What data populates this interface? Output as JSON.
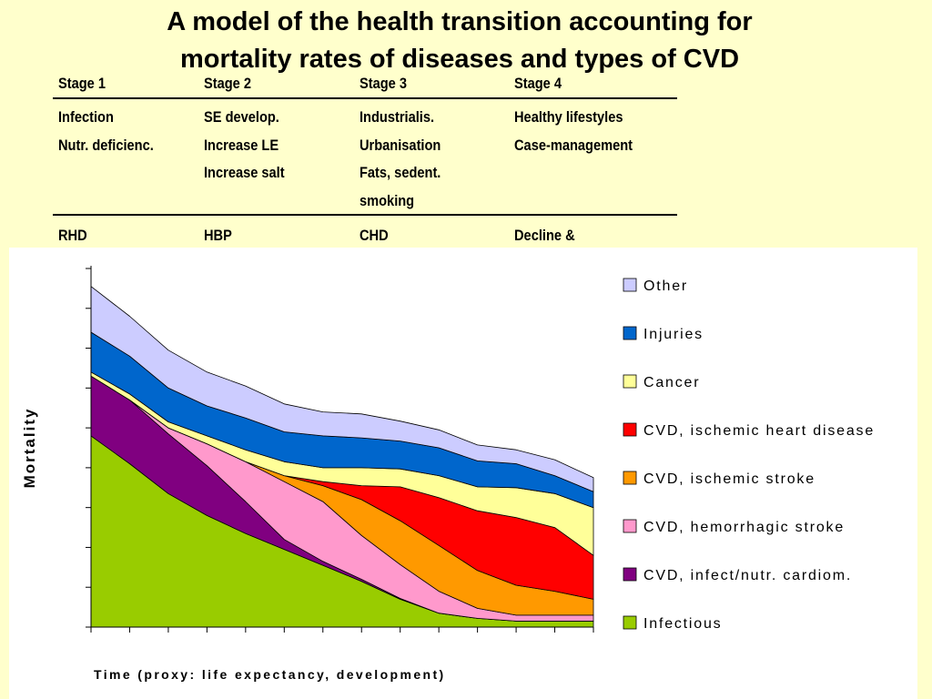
{
  "title_line1": "A model of the health transition accounting for",
  "title_line2": "mortality rates of diseases and types of CVD",
  "table": {
    "headers": [
      "Stage 1",
      "Stage 2",
      "Stage 3",
      "Stage 4"
    ],
    "rows": [
      [
        "Infection\nNutr. deficienc.",
        "SE develop.\nIncrease LE\nIncrease salt",
        "Industrialis.\nUrbanisation\nFats, sedent.\nsmoking",
        "Healthy lifestyles\nCase-management"
      ],
      [
        "RHD",
        "HBP",
        "CHD",
        "Decline &"
      ]
    ]
  },
  "chart_data": {
    "type": "area",
    "stacked": true,
    "title": "",
    "xlabel": "Time   (proxy: life expectancy, development)",
    "ylabel": "Mortality",
    "x": [
      0,
      1,
      2,
      3,
      4,
      5,
      6,
      7,
      8,
      9,
      10,
      11,
      12,
      13
    ],
    "ylim": [
      0,
      9
    ],
    "y_ticks": 9,
    "legend_position": "right",
    "series": [
      {
        "name": "Infectious",
        "color": "#99cc00",
        "values": [
          4.8,
          4.1,
          3.35,
          2.8,
          2.35,
          1.95,
          1.55,
          1.15,
          0.7,
          0.35,
          0.22,
          0.15,
          0.15,
          0.15
        ]
      },
      {
        "name": "CVD, infect/nutr. cardiom.",
        "color": "#800080",
        "values": [
          1.5,
          1.6,
          1.5,
          1.25,
          0.8,
          0.25,
          0.1,
          0.05,
          0.02,
          0.0,
          0.0,
          0.0,
          0.0,
          0.0
        ]
      },
      {
        "name": "CVD, hemorrhagic stroke",
        "color": "#ff99cc",
        "values": [
          0.0,
          0.0,
          0.15,
          0.55,
          1.0,
          1.45,
          1.5,
          1.1,
          0.85,
          0.55,
          0.25,
          0.15,
          0.15,
          0.15
        ]
      },
      {
        "name": "CVD, ischemic stroke",
        "color": "#ff9900",
        "values": [
          0.0,
          0.0,
          0.0,
          0.0,
          0.0,
          0.15,
          0.4,
          0.9,
          1.1,
          1.15,
          0.95,
          0.75,
          0.6,
          0.4
        ]
      },
      {
        "name": "CVD, ischemic heart disease",
        "color": "#ff0000",
        "values": [
          0.0,
          0.0,
          0.0,
          0.0,
          0.0,
          0.0,
          0.1,
          0.35,
          0.85,
          1.2,
          1.5,
          1.7,
          1.6,
          1.1
        ]
      },
      {
        "name": "Cancer",
        "color": "#ffff99",
        "values": [
          0.1,
          0.15,
          0.15,
          0.2,
          0.3,
          0.35,
          0.35,
          0.45,
          0.45,
          0.55,
          0.6,
          0.75,
          0.85,
          1.2
        ]
      },
      {
        "name": "Injuries",
        "color": "#0066cc",
        "values": [
          1.0,
          0.95,
          0.85,
          0.75,
          0.8,
          0.75,
          0.8,
          0.75,
          0.7,
          0.7,
          0.65,
          0.6,
          0.45,
          0.4
        ]
      },
      {
        "name": "Other",
        "color": "#ccccff",
        "values": [
          1.15,
          1.0,
          0.95,
          0.85,
          0.8,
          0.7,
          0.6,
          0.6,
          0.5,
          0.45,
          0.4,
          0.35,
          0.4,
          0.35
        ]
      }
    ]
  }
}
